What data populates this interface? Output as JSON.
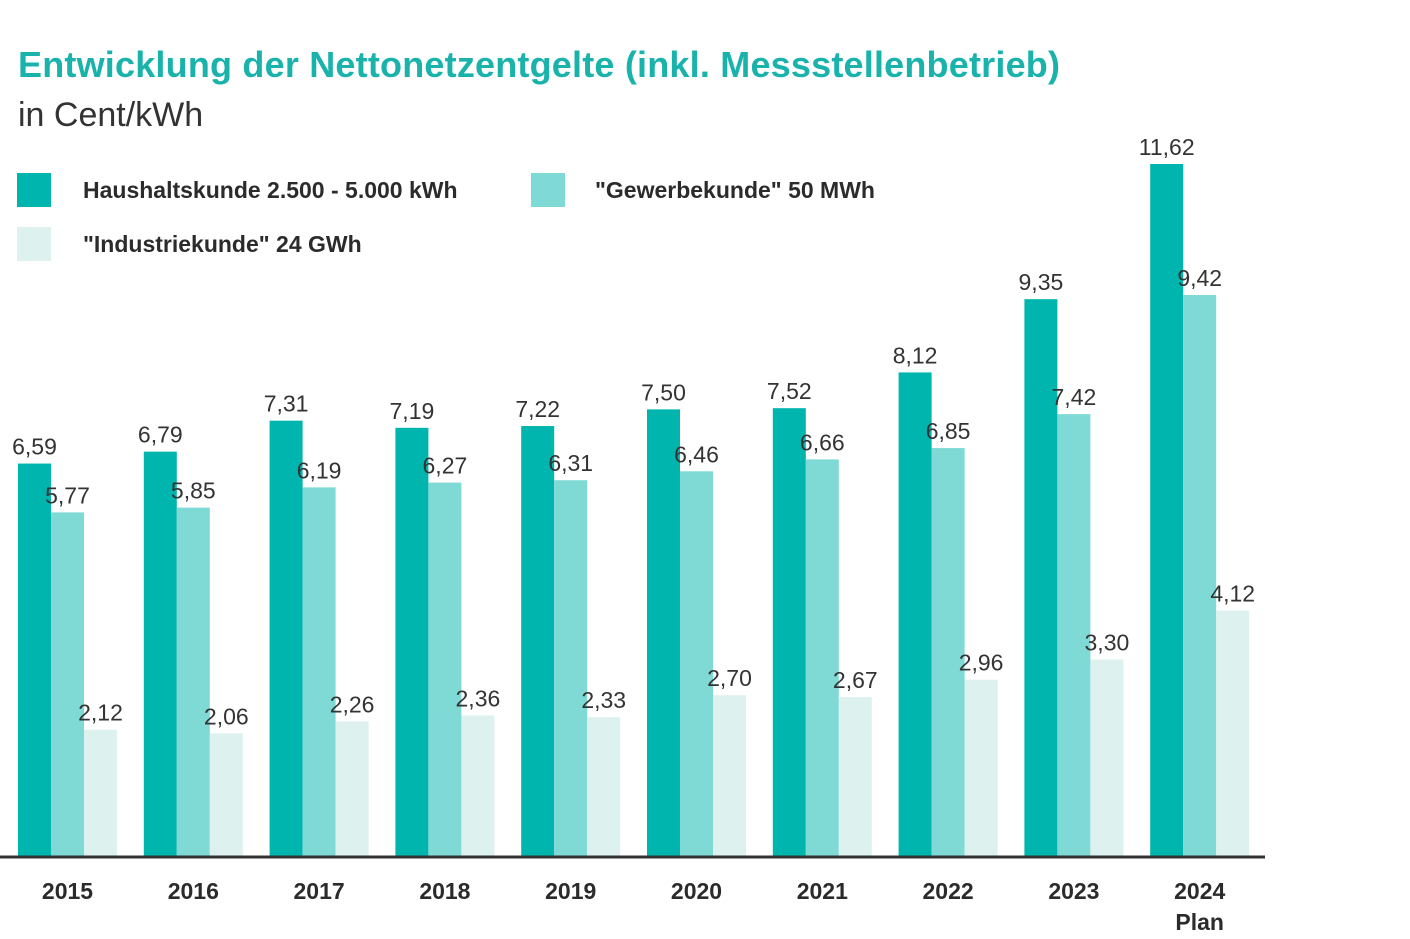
{
  "chart_data": {
    "type": "bar",
    "title": "Entwicklung der Nettonetzentgelte (inkl. Messstellenbetrieb)",
    "subtitle": "in Cent/kWh",
    "xlabel": "",
    "ylabel": "",
    "ylim": [
      0,
      11.62
    ],
    "grid": false,
    "legend_position": "top-left",
    "categories": [
      [
        "2015"
      ],
      [
        "2016"
      ],
      [
        "2017"
      ],
      [
        "2018"
      ],
      [
        "2019"
      ],
      [
        "2020"
      ],
      [
        "2021"
      ],
      [
        "2022"
      ],
      [
        "2023"
      ],
      [
        "2024",
        "Plan"
      ]
    ],
    "series": [
      {
        "name": "Haushaltskunde 2.500 - 5.000 kWh",
        "color": "#00b5ad",
        "values": [
          6.59,
          6.79,
          7.31,
          7.19,
          7.22,
          7.5,
          7.52,
          8.12,
          9.35,
          11.62
        ],
        "labels": [
          "6,59",
          "6,79",
          "7,31",
          "7,19",
          "7,22",
          "7,50",
          "7,52",
          "8,12",
          "9,35",
          "11,62"
        ]
      },
      {
        "name": "\"Gewerbekunde\" 50 MWh",
        "color": "#7fdad6",
        "values": [
          5.77,
          5.85,
          6.19,
          6.27,
          6.31,
          6.46,
          6.66,
          6.85,
          7.42,
          9.42
        ],
        "labels": [
          "5,77",
          "5,85",
          "6,19",
          "6,27",
          "6,31",
          "6,46",
          "6,66",
          "6,85",
          "7,42",
          "9,42"
        ]
      },
      {
        "name": "\"Industriekunde\" 24 GWh",
        "color": "#ddf1ef",
        "values": [
          2.12,
          2.06,
          2.26,
          2.36,
          2.33,
          2.7,
          2.67,
          2.96,
          3.3,
          4.12
        ],
        "labels": [
          "2,12",
          "2,06",
          "2,26",
          "2,36",
          "2,33",
          "2,70",
          "2,67",
          "2,96",
          "3,30",
          "4,12"
        ]
      }
    ]
  }
}
